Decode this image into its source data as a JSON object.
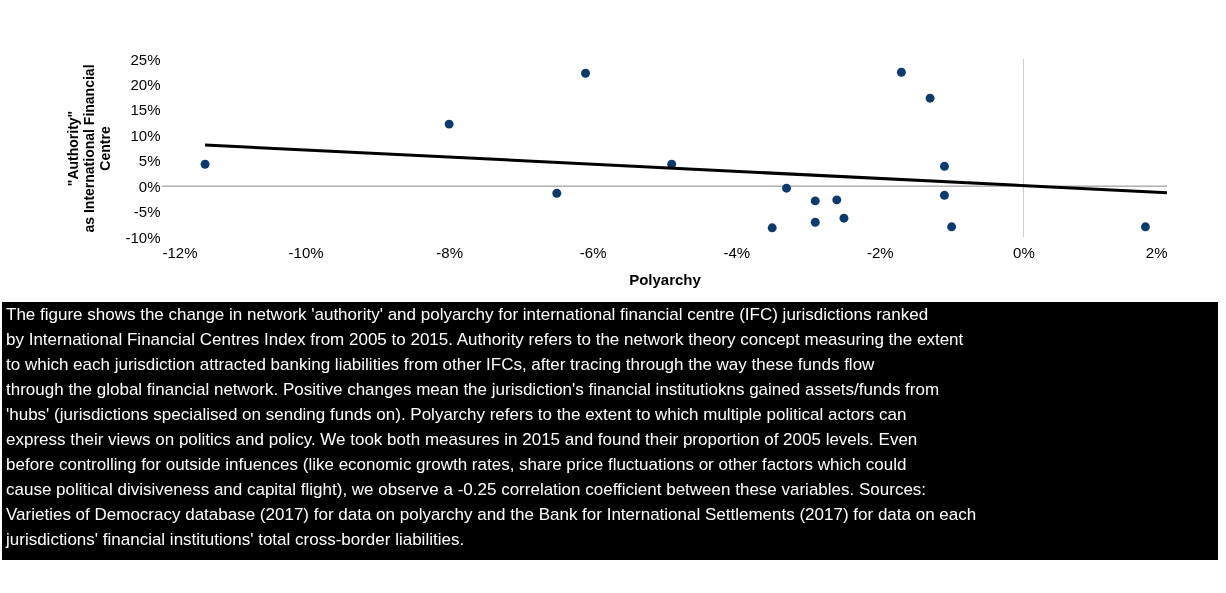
{
  "chart_data": {
    "type": "scatter",
    "xlabel": "Polyarchy",
    "ylabel": "\"Authority\"\nas International Financial\nCentre",
    "xlim": [
      -12,
      2
    ],
    "ylim": [
      -10,
      25
    ],
    "xticks": [
      {
        "value": -12,
        "label": "-12%"
      },
      {
        "value": -10,
        "label": "-10%"
      },
      {
        "value": -8,
        "label": "-8%"
      },
      {
        "value": -6,
        "label": "-6%"
      },
      {
        "value": -4,
        "label": "-4%"
      },
      {
        "value": -2,
        "label": "-2%"
      },
      {
        "value": 0,
        "label": "0%"
      },
      {
        "value": 2,
        "label": "2%"
      }
    ],
    "yticks": [
      {
        "value": -10,
        "label": "-10%"
      },
      {
        "value": -5,
        "label": "-5%"
      },
      {
        "value": 0,
        "label": "0%"
      },
      {
        "value": 5,
        "label": "5%"
      },
      {
        "value": 10,
        "label": "10%"
      },
      {
        "value": 15,
        "label": "15%"
      },
      {
        "value": 20,
        "label": "20%"
      },
      {
        "value": 25,
        "label": "25%"
      }
    ],
    "grid": false,
    "ref_lines": [
      {
        "axis": "y",
        "value": 0,
        "color": "#888888"
      },
      {
        "axis": "x",
        "value": 0,
        "color": "#cccccc"
      }
    ],
    "series": [
      {
        "color": "#0b3a6e",
        "marker": "circle",
        "x": [
          -11.4,
          -8.0,
          -6.1,
          -6.5,
          -4.9,
          -3.5,
          -3.3,
          -2.9,
          -2.9,
          -2.6,
          -2.5,
          -1.7,
          -1.3,
          -1.1,
          -1.1,
          -1.0,
          1.7
        ],
        "values": [
          4.3,
          12.2,
          22.2,
          -1.4,
          4.3,
          -8.2,
          -0.4,
          -7.1,
          -2.9,
          -2.7,
          -6.3,
          22.4,
          17.3,
          3.9,
          -1.8,
          -8.0,
          -8.0
        ]
      },
      {
        "type": "line",
        "color": "#000000",
        "line_style": "solid",
        "x": [
          -11.4,
          2.0
        ],
        "values": [
          8.1,
          -1.3
        ]
      }
    ],
    "annotations": [
      "The figure shows the change in network 'authority' and polyarchy for international financial centre (IFC) jurisdictions ranked by International Financial Centres Index from 2005 to 2015. Authority refers to the network theory concept measuring the extent to which each jurisdiction attracted banking liabilities from other IFCs, after tracing through the way these funds flow through the global financial network. Positive changes mean the jurisdiction's financial institutiokns gained assets/funds from 'hubs' (jurisdictions specialised on sending funds on). Polyarchy refers to the extent to which multiple political actors can express their views on politics and policy. We took both measures in 2015 and found their proportion of 2005 levels. Even before controlling for outside infuences (like economic growth rates, share price fluctuations or other factors which could cause political divisiveness and capital flight), we observe a -0.25 correlation coefficient between these variables. Sources: Varieties of Democracy database (2017) for data on polyarchy and the Bank for International Settlements (2017) for data on each jurisdictions' financial institutions' total cross-border liabilities."
    ]
  }
}
